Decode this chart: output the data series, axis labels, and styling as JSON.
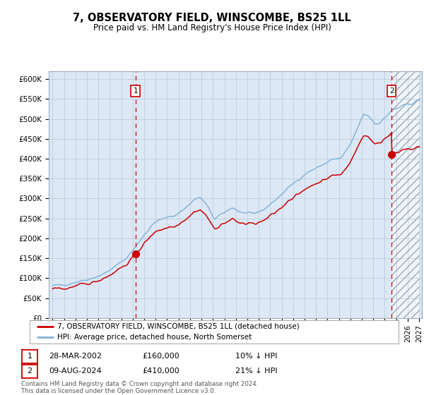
{
  "title": "7, OBSERVATORY FIELD, WINSCOMBE, BS25 1LL",
  "subtitle": "Price paid vs. HM Land Registry's House Price Index (HPI)",
  "plot_bg_color": "#dce8f5",
  "fig_bg_color": "#ffffff",
  "red_line_color": "#cc0000",
  "blue_line_color": "#7fb0d8",
  "marker_color": "#cc0000",
  "vline_color": "#cc0000",
  "transaction1_date": "28-MAR-2002",
  "transaction1_price": 160000,
  "transaction1_hpi_pct": "10% ↓ HPI",
  "transaction2_date": "09-AUG-2024",
  "transaction2_price": 410000,
  "transaction2_hpi_pct": "21% ↓ HPI",
  "legend_red": "7, OBSERVATORY FIELD, WINSCOMBE, BS25 1LL (detached house)",
  "legend_blue": "HPI: Average price, detached house, North Somerset",
  "footer1": "Contains HM Land Registry data © Crown copyright and database right 2024.",
  "footer2": "This data is licensed under the Open Government Licence v3.0.",
  "ylim": [
    0,
    620000
  ],
  "yticks": [
    0,
    50000,
    100000,
    150000,
    200000,
    250000,
    300000,
    350000,
    400000,
    450000,
    500000,
    550000,
    600000
  ],
  "ytick_labels": [
    "£0",
    "£50K",
    "£100K",
    "£150K",
    "£200K",
    "£250K",
    "£300K",
    "£350K",
    "£400K",
    "£450K",
    "£500K",
    "£550K",
    "£600K"
  ]
}
